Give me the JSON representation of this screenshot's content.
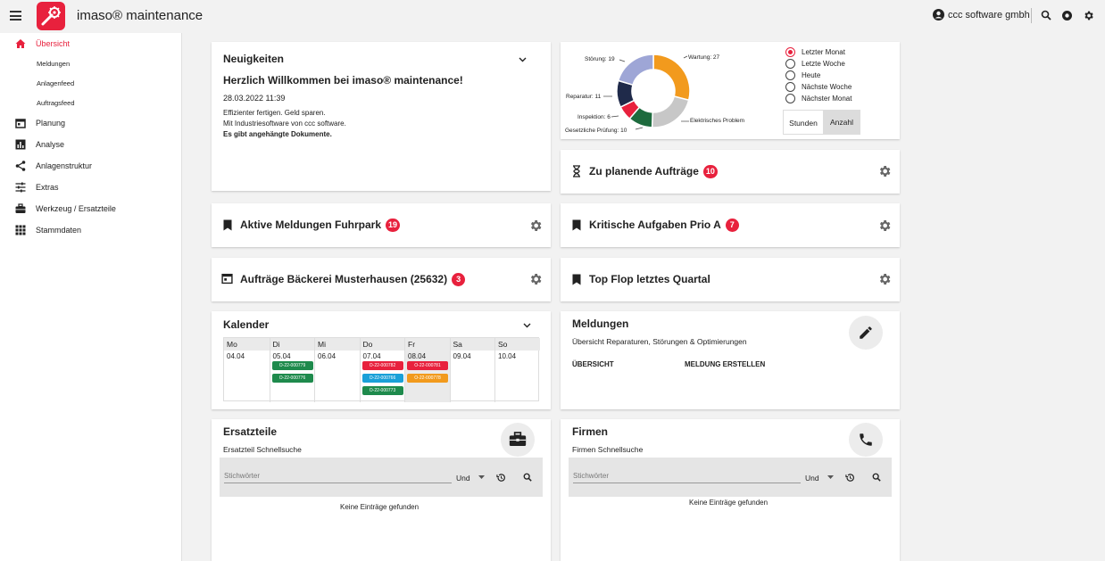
{
  "app": {
    "title": "imaso® maintenance"
  },
  "user": {
    "name": "ccc software gmbh"
  },
  "sidebar": {
    "items": [
      {
        "label": "Übersicht",
        "icon": "home-icon",
        "active": true
      },
      {
        "label": "Planung",
        "icon": "calendar-icon"
      },
      {
        "label": "Analyse",
        "icon": "bar-chart-icon"
      },
      {
        "label": "Anlagenstruktur",
        "icon": "share-icon"
      },
      {
        "label": "Extras",
        "icon": "tune-icon"
      },
      {
        "label": "Werkzeug / Ersatzteile",
        "icon": "toolbox-icon"
      },
      {
        "label": "Stammdaten",
        "icon": "grid-icon"
      }
    ],
    "subitems": [
      "Meldungen",
      "Anlagenfeed",
      "Auftragsfeed"
    ]
  },
  "news": {
    "title": "Neuigkeiten",
    "headline": "Herzlich Willkommen bei imaso® maintenance!",
    "date": "28.03.2022 11:39",
    "line1": "Effizienter fertigen. Geld sparen.",
    "line2": "Mit Industriesoftware von ccc software.",
    "line3": "Es gibt angehängte Dokumente."
  },
  "widgets": {
    "aktive_meldungen": {
      "title": "Aktive Meldungen Fuhrpark",
      "count": "19"
    },
    "auftraege_baeckerei": {
      "title": "Aufträge Bäckerei Musterhausen (25632)",
      "count": "3"
    },
    "zu_planende": {
      "title": "Zu planende Aufträge",
      "count": "10"
    },
    "kritische": {
      "title": "Kritische Aufgaben Prio A",
      "count": "7"
    },
    "top_flop": {
      "title": "Top Flop letztes Quartal"
    }
  },
  "calendar": {
    "title": "Kalender",
    "days": [
      {
        "day": "Mo",
        "date": "04.04",
        "events": []
      },
      {
        "day": "Di",
        "date": "05.04",
        "events": [
          {
            "id": "O-22-000779",
            "color": "#1e8a4c"
          },
          {
            "id": "O-22-000776",
            "color": "#1e8a4c"
          }
        ]
      },
      {
        "day": "Mi",
        "date": "06.04",
        "events": []
      },
      {
        "day": "Do",
        "date": "07.04",
        "events": [
          {
            "id": "O-22-000782",
            "color": "#e8213d"
          },
          {
            "id": "O-22-000766",
            "color": "#1aa0d8"
          },
          {
            "id": "O-22-000773",
            "color": "#1e8a4c"
          }
        ]
      },
      {
        "day": "Fr",
        "date": "08.04",
        "events": [
          {
            "id": "O-22-000781",
            "color": "#e8213d"
          },
          {
            "id": "O-22-000778",
            "color": "#f29a1d"
          }
        ]
      },
      {
        "day": "Sa",
        "date": "09.04",
        "events": []
      },
      {
        "day": "So",
        "date": "10.04",
        "events": []
      }
    ]
  },
  "meldungen": {
    "title": "Meldungen",
    "subtitle": "Übersicht Reparaturen, Störungen & Optimierungen",
    "action1": "ÜBERSICHT",
    "action2": "MELDUNG ERSTELLEN"
  },
  "ersatzteile": {
    "title": "Ersatzteile",
    "subtitle": "Ersatzteil Schnellsuche",
    "placeholder": "Stichwörter",
    "operator": "Und",
    "empty": "Keine Einträge gefunden"
  },
  "firmen": {
    "title": "Firmen",
    "subtitle": "Firmen Schnellsuche",
    "placeholder": "Stichwörter",
    "operator": "Und",
    "empty": "Keine Einträge gefunden"
  },
  "filters": {
    "ranges": [
      {
        "label": "Letzter Monat",
        "selected": true
      },
      {
        "label": "Letzte Woche",
        "selected": false
      },
      {
        "label": "Heute",
        "selected": false
      },
      {
        "label": "Nächste Woche",
        "selected": false
      },
      {
        "label": "Nächster Monat",
        "selected": false
      }
    ],
    "toggle": [
      "Stunden",
      "Anzahl"
    ],
    "toggle_active": "Anzahl"
  },
  "chart_data": {
    "type": "pie",
    "donut": true,
    "slices": [
      {
        "label": "Wartung: 27",
        "value": 27,
        "color": "#f29a1d"
      },
      {
        "label": "Elektrisches Problem",
        "value": 20,
        "color": "#c7c7c7"
      },
      {
        "label": "Gesetzliche Prüfung: 10",
        "value": 10,
        "color": "#1e6b3e"
      },
      {
        "label": "Inspektion: 6",
        "value": 6,
        "color": "#e8213d"
      },
      {
        "label": "Reparatur: 11",
        "value": 11,
        "color": "#1f2a4a"
      },
      {
        "label": "Störung: 19",
        "value": 19,
        "color": "#9ea6d6"
      }
    ]
  },
  "colors": {
    "accent": "#e8213d"
  }
}
